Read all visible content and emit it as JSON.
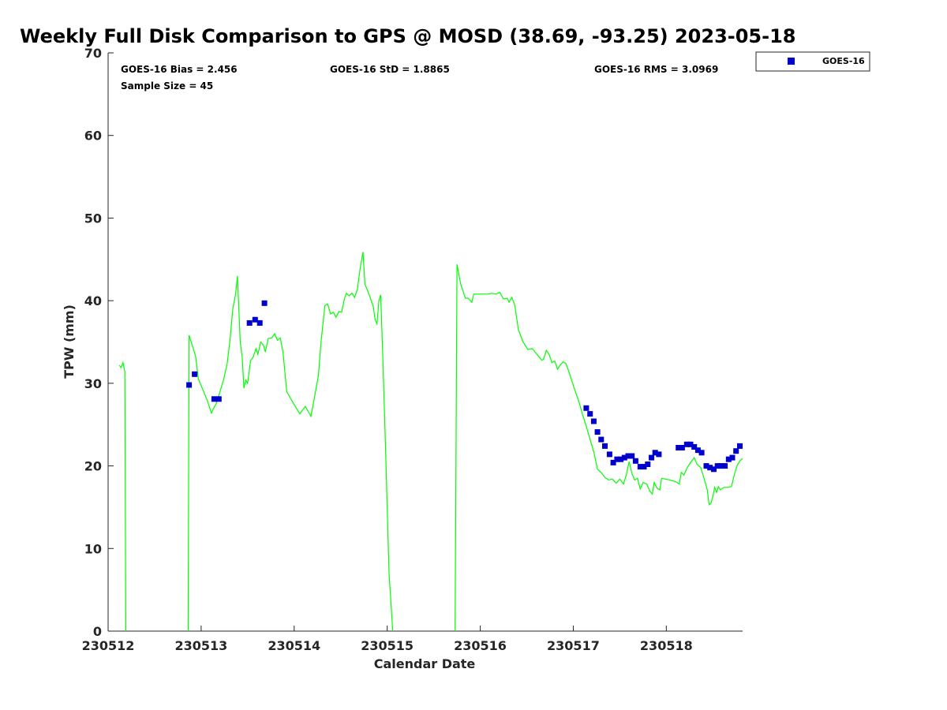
{
  "chart_data": {
    "type": "scatter",
    "title": "Weekly Full Disk Comparison to GPS @ MOSD (38.69, -93.25) 2023-05-18",
    "xlabel": "Calendar Date",
    "ylabel": "TPW (mm)",
    "xlim": [
      230512,
      230518.82
    ],
    "ylim": [
      0,
      70
    ],
    "x_ticks": [
      230512,
      230513,
      230514,
      230515,
      230516,
      230517,
      230518
    ],
    "x_tick_labels": [
      "230512",
      "230513",
      "230514",
      "230515",
      "230516",
      "230517",
      "230518"
    ],
    "y_ticks": [
      0,
      10,
      20,
      30,
      40,
      50,
      60,
      70
    ],
    "y_tick_labels": [
      "0",
      "10",
      "20",
      "30",
      "40",
      "50",
      "60",
      "70"
    ],
    "legend_position": "top-right",
    "stats": {
      "bias": "GOES-16 Bias = 2.456",
      "std": "GOES-16 StD = 1.8865",
      "rms": "GOES-16 RMS = 3.0969",
      "sample": "Sample Size = 45"
    },
    "series": [
      {
        "name": "GOES-16",
        "kind": "scatter",
        "color": "#0000cc",
        "points": [
          [
            230512.87,
            29.8
          ],
          [
            230512.93,
            31.1
          ],
          [
            230513.14,
            28.1
          ],
          [
            230513.19,
            28.1
          ],
          [
            230513.52,
            37.3
          ],
          [
            230513.58,
            37.7
          ],
          [
            230513.63,
            37.3
          ],
          [
            230513.68,
            39.7
          ],
          [
            230517.14,
            27.0
          ],
          [
            230517.18,
            26.3
          ],
          [
            230517.22,
            25.4
          ],
          [
            230517.26,
            24.1
          ],
          [
            230517.3,
            23.2
          ],
          [
            230517.34,
            22.4
          ],
          [
            230517.39,
            21.4
          ],
          [
            230517.43,
            20.4
          ],
          [
            230517.47,
            20.8
          ],
          [
            230517.51,
            20.8
          ],
          [
            230517.55,
            21.0
          ],
          [
            230517.59,
            21.2
          ],
          [
            230517.63,
            21.2
          ],
          [
            230517.67,
            20.6
          ],
          [
            230517.72,
            19.9
          ],
          [
            230517.76,
            19.9
          ],
          [
            230517.8,
            20.2
          ],
          [
            230517.84,
            21.0
          ],
          [
            230517.88,
            21.6
          ],
          [
            230517.92,
            21.4
          ],
          [
            230518.13,
            22.2
          ],
          [
            230518.17,
            22.2
          ],
          [
            230518.22,
            22.6
          ],
          [
            230518.26,
            22.6
          ],
          [
            230518.3,
            22.3
          ],
          [
            230518.34,
            21.9
          ],
          [
            230518.38,
            21.6
          ],
          [
            230518.43,
            20.0
          ],
          [
            230518.47,
            19.8
          ],
          [
            230518.51,
            19.6
          ],
          [
            230518.55,
            20.0
          ],
          [
            230518.59,
            20.0
          ],
          [
            230518.63,
            20.0
          ],
          [
            230518.67,
            20.8
          ],
          [
            230518.71,
            21.0
          ],
          [
            230518.75,
            21.8
          ],
          [
            230518.79,
            22.4
          ]
        ]
      },
      {
        "kind": "line",
        "color": "#00ff00",
        "segments": [
          [
            [
              230512.12,
              32.2
            ],
            [
              230512.14,
              31.9
            ],
            [
              230512.16,
              32.5
            ],
            [
              230512.18,
              31.4
            ],
            [
              230512.19,
              0
            ]
          ],
          [
            [
              230512.86,
              0
            ],
            [
              230512.87,
              35.8
            ],
            [
              230512.91,
              34.4
            ],
            [
              230512.94,
              33.3
            ],
            [
              230512.97,
              30.5
            ],
            [
              230513.02,
              29.2
            ],
            [
              230513.07,
              27.8
            ],
            [
              230513.11,
              26.4
            ],
            [
              230513.13,
              26.9
            ],
            [
              230513.16,
              27.5
            ],
            [
              230513.2,
              28.9
            ],
            [
              230513.24,
              30.4
            ],
            [
              230513.28,
              32.4
            ],
            [
              230513.31,
              35.2
            ],
            [
              230513.34,
              39.0
            ],
            [
              230513.37,
              40.8
            ],
            [
              230513.39,
              43.0
            ],
            [
              230513.42,
              35.0
            ],
            [
              230513.44,
              33.3
            ],
            [
              230513.46,
              29.4
            ],
            [
              230513.48,
              30.4
            ],
            [
              230513.5,
              30.0
            ],
            [
              230513.53,
              32.7
            ],
            [
              230513.56,
              33.2
            ],
            [
              230513.59,
              34.2
            ],
            [
              230513.61,
              33.5
            ],
            [
              230513.64,
              35.0
            ],
            [
              230513.67,
              34.6
            ],
            [
              230513.69,
              33.8
            ],
            [
              230513.72,
              35.4
            ],
            [
              230513.76,
              35.5
            ],
            [
              230513.79,
              36.0
            ],
            [
              230513.82,
              35.2
            ],
            [
              230513.85,
              35.5
            ],
            [
              230513.88,
              33.8
            ],
            [
              230513.92,
              29.0
            ],
            [
              230513.99,
              27.6
            ],
            [
              230514.06,
              26.3
            ],
            [
              230514.12,
              27.2
            ],
            [
              230514.18,
              26.0
            ],
            [
              230514.22,
              28.4
            ],
            [
              230514.26,
              30.9
            ],
            [
              230514.29,
              35.2
            ],
            [
              230514.33,
              39.4
            ],
            [
              230514.36,
              39.6
            ],
            [
              230514.39,
              38.4
            ],
            [
              230514.42,
              38.6
            ],
            [
              230514.45,
              38.0
            ],
            [
              230514.48,
              38.7
            ],
            [
              230514.51,
              38.6
            ],
            [
              230514.54,
              40.2
            ],
            [
              230514.56,
              40.9
            ],
            [
              230514.59,
              40.6
            ],
            [
              230514.62,
              40.9
            ],
            [
              230514.65,
              40.4
            ],
            [
              230514.68,
              41.4
            ],
            [
              230514.71,
              44.0
            ],
            [
              230514.74,
              45.9
            ],
            [
              230514.76,
              42.0
            ],
            [
              230514.79,
              41.2
            ],
            [
              230514.82,
              40.3
            ],
            [
              230514.85,
              39.3
            ],
            [
              230514.87,
              37.7
            ],
            [
              230514.89,
              37.2
            ],
            [
              230514.91,
              40.0
            ],
            [
              230514.93,
              40.7
            ],
            [
              230514.95,
              34.0
            ],
            [
              230514.98,
              23.0
            ],
            [
              230515.02,
              7.0
            ],
            [
              230515.06,
              0
            ]
          ],
          [
            [
              230515.73,
              0
            ],
            [
              230515.75,
              44.4
            ],
            [
              230515.79,
              42.0
            ],
            [
              230515.84,
              40.3
            ],
            [
              230515.87,
              40.3
            ],
            [
              230515.91,
              39.8
            ],
            [
              230515.93,
              40.8
            ],
            [
              230516.01,
              40.8
            ],
            [
              230516.08,
              40.8
            ],
            [
              230516.12,
              40.9
            ],
            [
              230516.17,
              40.8
            ],
            [
              230516.21,
              41.0
            ],
            [
              230516.25,
              40.2
            ],
            [
              230516.29,
              40.3
            ],
            [
              230516.31,
              39.8
            ],
            [
              230516.34,
              40.4
            ],
            [
              230516.37,
              39.5
            ],
            [
              230516.41,
              36.5
            ],
            [
              230516.46,
              35.0
            ],
            [
              230516.51,
              34.1
            ],
            [
              230516.56,
              34.2
            ],
            [
              230516.61,
              33.5
            ],
            [
              230516.66,
              32.8
            ],
            [
              230516.68,
              32.9
            ],
            [
              230516.71,
              34.0
            ],
            [
              230516.74,
              33.5
            ],
            [
              230516.77,
              32.5
            ],
            [
              230516.8,
              32.7
            ],
            [
              230516.83,
              31.7
            ],
            [
              230516.86,
              32.2
            ],
            [
              230516.89,
              32.6
            ],
            [
              230516.92,
              32.4
            ],
            [
              230516.95,
              31.5
            ],
            [
              230517.01,
              29.4
            ],
            [
              230517.06,
              27.8
            ],
            [
              230517.1,
              26.2
            ],
            [
              230517.14,
              24.8
            ],
            [
              230517.18,
              23.2
            ],
            [
              230517.22,
              21.7
            ],
            [
              230517.26,
              19.6
            ],
            [
              230517.3,
              19.2
            ],
            [
              230517.34,
              18.6
            ],
            [
              230517.38,
              18.3
            ],
            [
              230517.42,
              18.4
            ],
            [
              230517.46,
              17.9
            ],
            [
              230517.5,
              18.4
            ],
            [
              230517.54,
              17.8
            ],
            [
              230517.57,
              18.9
            ],
            [
              230517.6,
              20.5
            ],
            [
              230517.63,
              19.1
            ],
            [
              230517.66,
              18.3
            ],
            [
              230517.69,
              18.5
            ],
            [
              230517.72,
              17.2
            ],
            [
              230517.75,
              18.0
            ],
            [
              230517.79,
              17.8
            ],
            [
              230517.82,
              17.0
            ],
            [
              230517.85,
              16.6
            ],
            [
              230517.87,
              18.0
            ],
            [
              230517.9,
              17.3
            ],
            [
              230517.93,
              17.1
            ],
            [
              230517.95,
              18.5
            ],
            [
              230518.04,
              18.3
            ],
            [
              230518.1,
              18.1
            ],
            [
              230518.14,
              17.8
            ],
            [
              230518.16,
              19.2
            ],
            [
              230518.19,
              18.9
            ],
            [
              230518.22,
              19.7
            ],
            [
              230518.26,
              20.4
            ],
            [
              230518.3,
              21.0
            ],
            [
              230518.33,
              20.2
            ],
            [
              230518.37,
              19.8
            ],
            [
              230518.41,
              18.3
            ],
            [
              230518.44,
              17.1
            ],
            [
              230518.46,
              15.3
            ],
            [
              230518.48,
              15.5
            ],
            [
              230518.5,
              16.3
            ],
            [
              230518.52,
              17.4
            ],
            [
              230518.54,
              16.8
            ],
            [
              230518.56,
              17.5
            ],
            [
              230518.58,
              17.1
            ],
            [
              230518.62,
              17.4
            ],
            [
              230518.66,
              17.4
            ],
            [
              230518.7,
              17.5
            ],
            [
              230518.73,
              18.9
            ],
            [
              230518.76,
              20.0
            ],
            [
              230518.79,
              20.6
            ],
            [
              230518.82,
              20.9
            ]
          ]
        ]
      }
    ]
  }
}
